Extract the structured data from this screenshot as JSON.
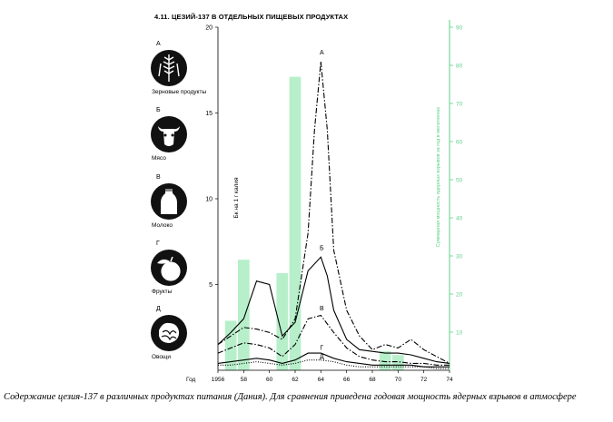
{
  "title": "4.11. ЦЕЗИЙ-137 В ОТДЕЛЬНЫХ ПИЩЕВЫХ ПРОДУКТАХ",
  "caption": "Содержание цезия-137 в различных продуктах питания (Дания). Для сравнения приведена годовая мощность ядерных взрывов в атмосфере",
  "legend": [
    {
      "letter": "А",
      "label": "Зерновые продукты",
      "icon": "wheat-icon"
    },
    {
      "letter": "Б",
      "label": "Мясо",
      "icon": "cow-icon"
    },
    {
      "letter": "В",
      "label": "Молоко",
      "icon": "milk-bottle-icon"
    },
    {
      "letter": "Г",
      "label": "Фрукты",
      "icon": "apple-icon"
    },
    {
      "letter": "Д",
      "label": "Овощи",
      "icon": "cabbage-icon"
    }
  ],
  "colors": {
    "bars": "#b7efca",
    "right_axis": "#5fd18a",
    "lines": "#000000"
  },
  "chart_data": {
    "type": "bar+line",
    "title": "4.11. ЦЕЗИЙ-137 В ОТДЕЛЬНЫХ ПИЩЕВЫХ ПРОДУКТАХ",
    "xlabel": "Год",
    "ylabel": "Бк на 1 г калия",
    "y2label": "Суммарная мощность ядерных взрывов за год в мегатоннах",
    "xlim": [
      1956,
      1974
    ],
    "ylim": [
      0,
      20
    ],
    "y2lim": [
      0,
      90
    ],
    "x_ticks": [
      "1956",
      "58",
      "60",
      "62",
      "64",
      "66",
      "68",
      "70",
      "72",
      "74"
    ],
    "x_tick_values": [
      1956,
      1958,
      1960,
      1962,
      1964,
      1966,
      1968,
      1970,
      1972,
      1974
    ],
    "y_ticks": [
      "5",
      "10",
      "15",
      "20"
    ],
    "y_tick_values": [
      5,
      10,
      15,
      20
    ],
    "y2_ticks": [
      "10",
      "20",
      "30",
      "40",
      "50",
      "60",
      "70",
      "80",
      "90"
    ],
    "y2_tick_values": [
      10,
      20,
      30,
      40,
      50,
      60,
      70,
      80,
      90
    ],
    "bars": {
      "name": "Суммарная мощность ядерных взрывов",
      "axis": "right",
      "x": [
        1957,
        1958,
        1961,
        1962,
        1969,
        1970
      ],
      "values": [
        13,
        29,
        25.5,
        77,
        5,
        4
      ]
    },
    "series": [
      {
        "name": "А",
        "style": "dash-dot",
        "x": [
          1956,
          1957,
          1958,
          1959,
          1960,
          1961,
          1962,
          1963,
          1963.5,
          1964,
          1964.5,
          1965,
          1966,
          1967,
          1968,
          1969,
          1970,
          1971,
          1972,
          1973,
          1974
        ],
        "y": [
          1.5,
          2.0,
          2.5,
          2.4,
          2.2,
          1.8,
          3.0,
          8.0,
          14.0,
          18.0,
          14.0,
          7.0,
          3.5,
          2.0,
          1.2,
          1.5,
          1.3,
          1.8,
          1.2,
          0.8,
          0.4
        ]
      },
      {
        "name": "Б",
        "style": "solid",
        "x": [
          1956,
          1957,
          1958,
          1959,
          1960,
          1961,
          1962,
          1963,
          1964,
          1964.5,
          1965,
          1966,
          1967,
          1968,
          1969,
          1970,
          1971,
          1972,
          1973,
          1974
        ],
        "y": [
          1.5,
          2.2,
          3.0,
          5.2,
          5.0,
          2.0,
          2.8,
          5.8,
          6.6,
          5.5,
          3.5,
          1.8,
          1.2,
          1.1,
          1.0,
          1.0,
          0.9,
          0.7,
          0.5,
          0.4
        ]
      },
      {
        "name": "В",
        "style": "dash-dot",
        "x": [
          1956,
          1957,
          1958,
          1959,
          1960,
          1961,
          1962,
          1963,
          1964,
          1965,
          1966,
          1967,
          1968,
          1969,
          1970,
          1971,
          1972,
          1973,
          1974
        ],
        "y": [
          1.0,
          1.3,
          1.6,
          1.5,
          1.3,
          0.8,
          1.5,
          3.0,
          3.2,
          2.2,
          1.3,
          0.8,
          0.6,
          0.5,
          0.5,
          0.4,
          0.4,
          0.3,
          0.3
        ]
      },
      {
        "name": "Г",
        "style": "solid",
        "x": [
          1956,
          1957,
          1958,
          1959,
          1960,
          1961,
          1962,
          1963,
          1964,
          1965,
          1966,
          1967,
          1968,
          1969,
          1970,
          1971,
          1972,
          1973,
          1974
        ],
        "y": [
          0.4,
          0.5,
          0.6,
          0.7,
          0.6,
          0.4,
          0.6,
          1.0,
          1.0,
          0.7,
          0.5,
          0.4,
          0.3,
          0.3,
          0.3,
          0.3,
          0.2,
          0.2,
          0.2
        ]
      },
      {
        "name": "Д",
        "style": "dotted",
        "x": [
          1956,
          1957,
          1958,
          1959,
          1960,
          1961,
          1962,
          1963,
          1964,
          1965,
          1966,
          1967,
          1968,
          1969,
          1970,
          1971,
          1972,
          1973,
          1974
        ],
        "y": [
          0.3,
          0.3,
          0.4,
          0.5,
          0.4,
          0.3,
          0.4,
          0.6,
          0.6,
          0.5,
          0.3,
          0.2,
          0.2,
          0.2,
          0.2,
          0.2,
          0.2,
          0.1,
          0.1
        ]
      }
    ]
  }
}
